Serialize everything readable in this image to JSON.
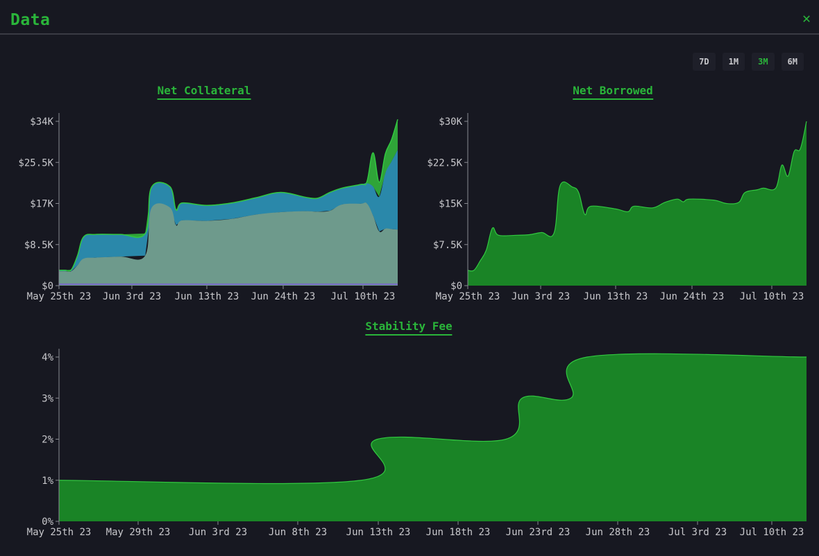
{
  "header": {
    "title": "Data",
    "close_icon": "close-icon"
  },
  "range_selector": {
    "options": [
      "7D",
      "1M",
      "3M",
      "6M"
    ],
    "active": "3M"
  },
  "colors": {
    "green": "#1a8426",
    "green_line": "#32c840",
    "blue": "#2a88aa",
    "grey": "#6e9a8c",
    "light_green": "#2fa438"
  },
  "chart_data": [
    {
      "type": "area",
      "stacked": true,
      "title": "Net Collateral",
      "x_ticks": [
        "May 25th 23",
        "Jun 3rd 23",
        "Jun 13th 23",
        "Jun 24th 23",
        "Jul 10th 23"
      ],
      "y_ticks": [
        "$0",
        "$8.5K",
        "$17K",
        "$25.5K",
        "$34K"
      ],
      "ylim": [
        0,
        34000
      ],
      "xlim": [
        0,
        55
      ],
      "series": [
        {
          "values_xy": [
            [
              0,
              3000
            ],
            [
              1,
              3000
            ],
            [
              2,
              3000
            ],
            [
              3,
              4200
            ],
            [
              4,
              5600
            ],
            [
              6,
              5800
            ],
            [
              10,
              6000
            ],
            [
              14,
              6200
            ],
            [
              15,
              16000
            ],
            [
              18,
              16200
            ],
            [
              19,
              12500
            ],
            [
              20,
              13500
            ],
            [
              24,
              13400
            ],
            [
              28,
              13800
            ],
            [
              32,
              14700
            ],
            [
              36,
              15200
            ],
            [
              40,
              15400
            ],
            [
              42,
              15300
            ],
            [
              44,
              15500
            ],
            [
              46,
              16800
            ],
            [
              50,
              17000
            ],
            [
              51,
              14500
            ],
            [
              52,
              11200
            ],
            [
              53,
              11800
            ],
            [
              55,
              11600
            ]
          ]
        },
        {
          "values_xy": [
            [
              0,
              200
            ],
            [
              1,
              200
            ],
            [
              2,
              300
            ],
            [
              3,
              2000
            ],
            [
              4,
              4500
            ],
            [
              6,
              4800
            ],
            [
              10,
              4600
            ],
            [
              14,
              4600
            ],
            [
              15,
              4300
            ],
            [
              18,
              4300
            ],
            [
              19,
              3200
            ],
            [
              20,
              3600
            ],
            [
              24,
              3200
            ],
            [
              28,
              3300
            ],
            [
              32,
              3500
            ],
            [
              36,
              4100
            ],
            [
              40,
              2900
            ],
            [
              42,
              2800
            ],
            [
              44,
              3800
            ],
            [
              46,
              3400
            ],
            [
              50,
              4200
            ],
            [
              51,
              6000
            ],
            [
              52,
              7200
            ],
            [
              53,
              11500
            ],
            [
              55,
              16500
            ]
          ]
        },
        {
          "values_xy": [
            [
              0,
              0
            ],
            [
              2,
              0
            ],
            [
              3,
              0
            ],
            [
              46,
              0
            ],
            [
              49,
              0
            ],
            [
              50,
              300
            ],
            [
              51,
              7000
            ],
            [
              52,
              3000
            ],
            [
              53,
              4000
            ],
            [
              54,
              4500
            ],
            [
              55,
              6300
            ]
          ]
        }
      ]
    },
    {
      "type": "area",
      "title": "Net Borrowed",
      "x_ticks": [
        "May 25th 23",
        "Jun 3rd 23",
        "Jun 13th 23",
        "Jun 24th 23",
        "Jul 10th 23"
      ],
      "y_ticks": [
        "$0",
        "$7.5K",
        "$15K",
        "$22.5K",
        "$30K"
      ],
      "ylim": [
        0,
        30000
      ],
      "xlim": [
        0,
        55
      ],
      "series": [
        {
          "values_xy": [
            [
              0,
              2800
            ],
            [
              1,
              2800
            ],
            [
              2,
              4500
            ],
            [
              3,
              6500
            ],
            [
              4,
              10500
            ],
            [
              5,
              9200
            ],
            [
              8,
              9200
            ],
            [
              10,
              9300
            ],
            [
              12,
              9700
            ],
            [
              14,
              9600
            ],
            [
              15,
              18300
            ],
            [
              17,
              18000
            ],
            [
              18,
              17000
            ],
            [
              19,
              13000
            ],
            [
              20,
              14500
            ],
            [
              24,
              14000
            ],
            [
              26,
              13500
            ],
            [
              27,
              14500
            ],
            [
              30,
              14200
            ],
            [
              32,
              15200
            ],
            [
              34,
              15800
            ],
            [
              35,
              15300
            ],
            [
              36,
              15800
            ],
            [
              40,
              15600
            ],
            [
              42,
              15000
            ],
            [
              44,
              15200
            ],
            [
              45,
              17000
            ],
            [
              47,
              17500
            ],
            [
              48,
              17800
            ],
            [
              50,
              17800
            ],
            [
              51,
              22000
            ],
            [
              52,
              20000
            ],
            [
              53,
              24500
            ],
            [
              54,
              25000
            ],
            [
              55,
              30000
            ]
          ]
        }
      ]
    },
    {
      "type": "area",
      "title": "Stability Fee",
      "x_ticks": [
        "May 25th 23",
        "May 29th 23",
        "Jun 3rd 23",
        "Jun 8th 23",
        "Jun 13th 23",
        "Jun 18th 23",
        "Jun 23rd 23",
        "Jun 28th 23",
        "Jul 3rd 23",
        "Jul 10th 23"
      ],
      "y_ticks": [
        "0%",
        "1%",
        "2%",
        "3%",
        "4%"
      ],
      "ylim": [
        0,
        4
      ],
      "xlim": [
        0,
        46
      ],
      "series": [
        {
          "values_xy": [
            [
              0,
              1
            ],
            [
              18.6,
              1
            ],
            [
              19.6,
              2
            ],
            [
              27.5,
              2
            ],
            [
              28.5,
              3
            ],
            [
              31.5,
              3
            ],
            [
              32.5,
              4
            ],
            [
              46,
              4
            ]
          ]
        }
      ]
    }
  ]
}
